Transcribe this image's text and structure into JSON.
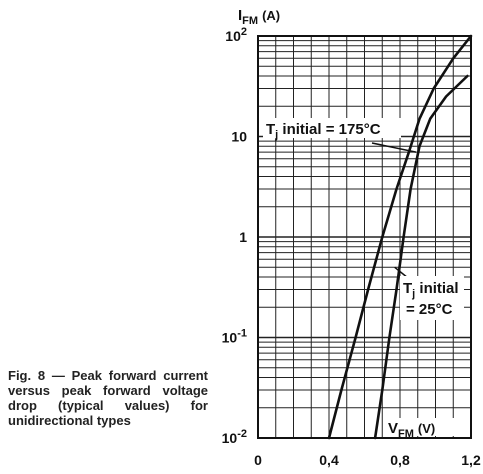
{
  "caption": "Fig. 8 — Peak forward current versus peak forward voltage drop (typical values) for unidirectional types",
  "chart_data": {
    "type": "line",
    "y_scale": "log",
    "xlim": [
      0,
      1.2
    ],
    "ylim": [
      0.01,
      100
    ],
    "x_ticks": [
      "0",
      "0,4",
      "0,8",
      "1,2"
    ],
    "y_ticks": [
      {
        "base": "10",
        "exp": "-2"
      },
      {
        "base": "10",
        "exp": "-1"
      },
      {
        "base": "1",
        "exp": ""
      },
      {
        "base": "10",
        "exp": ""
      },
      {
        "base": "10",
        "exp": "2"
      }
    ],
    "y_label": {
      "main": "I",
      "sub": "FM",
      "unit": "(A)"
    },
    "x_label": {
      "main": "V",
      "sub": "FM",
      "unit": "(V)"
    },
    "grid": true,
    "series": [
      {
        "name": "Tj initial = 175°C",
        "x": [
          0.4,
          0.47,
          0.55,
          0.62,
          0.7,
          0.78,
          0.85,
          0.91,
          0.99,
          1.1,
          1.2
        ],
        "y": [
          0.01,
          0.03,
          0.1,
          0.3,
          1,
          3,
          7,
          15,
          30,
          60,
          100
        ]
      },
      {
        "name": "Tj initial = 25°C",
        "x": [
          0.66,
          0.7,
          0.74,
          0.78,
          0.82,
          0.86,
          0.91,
          0.97,
          1.06,
          1.18
        ],
        "y": [
          0.01,
          0.03,
          0.1,
          0.3,
          1,
          3,
          8,
          15,
          25,
          40
        ]
      }
    ],
    "annotations": [
      {
        "lines": [
          {
            "main": "T",
            "sub": "j",
            "rest": " initial = 175°C"
          }
        ],
        "target": {
          "x": 0.89,
          "y": 7
        }
      },
      {
        "lines": [
          {
            "main": "T",
            "sub": "j",
            "rest": " initial"
          },
          {
            "main": "",
            "sub": "",
            "rest": "= 25°C"
          }
        ],
        "target": {
          "x": 0.77,
          "y": 0.5
        }
      }
    ]
  },
  "colors": {
    "ink": "#111111",
    "grid": "#222222",
    "background": "#ffffff"
  }
}
